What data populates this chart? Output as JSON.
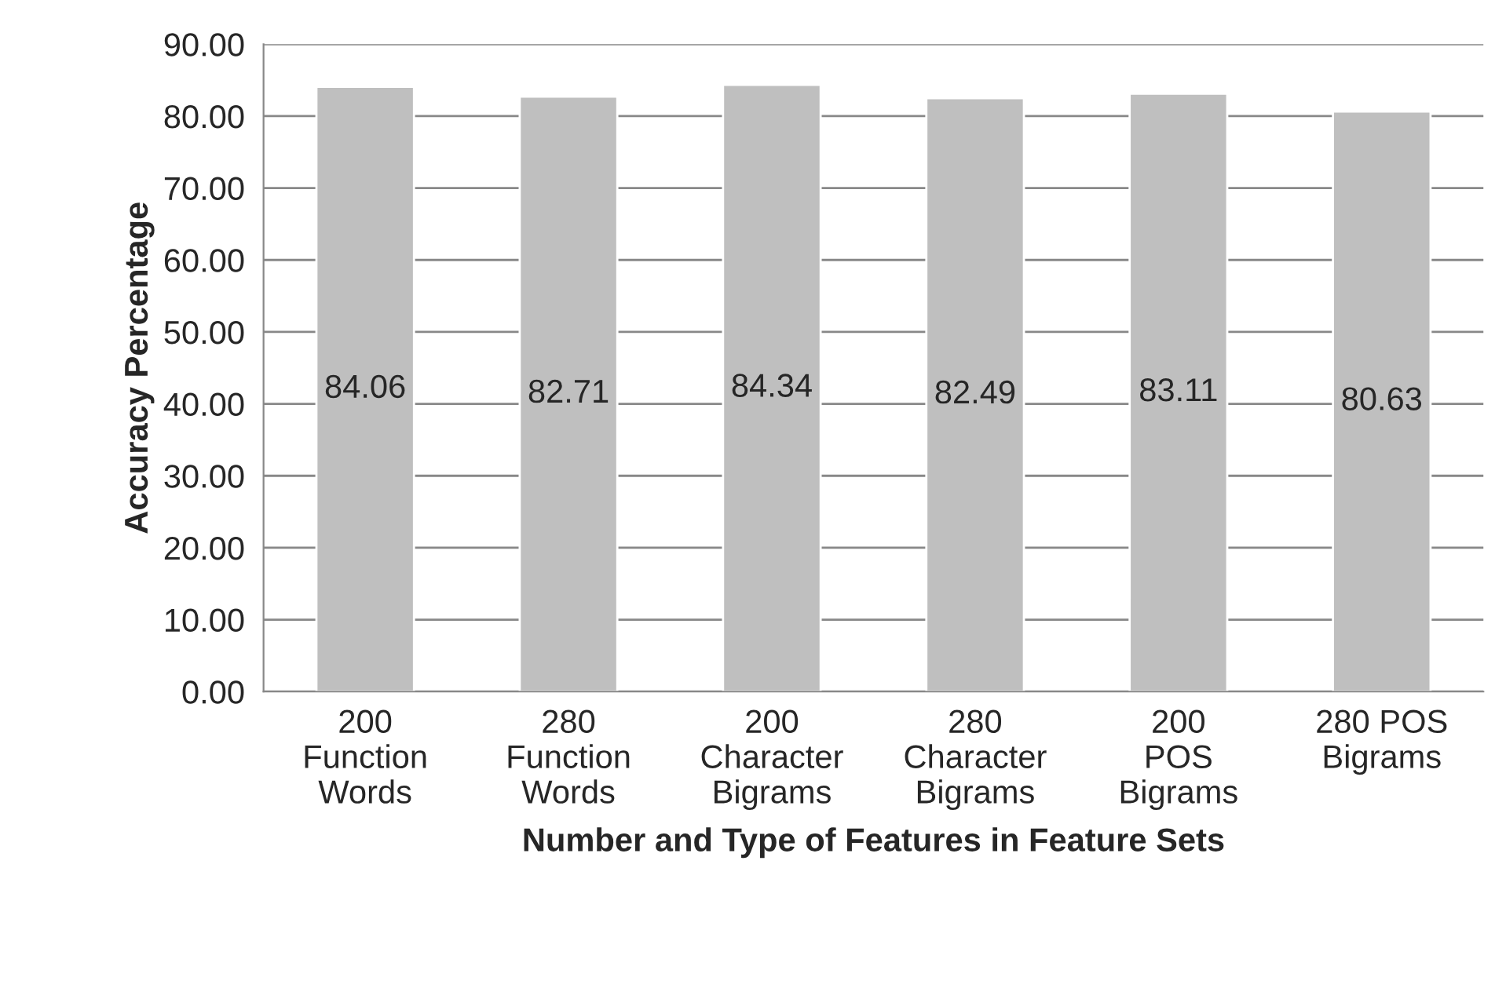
{
  "chart_data": {
    "type": "bar",
    "categories": [
      "200\nFunction\nWords",
      "280\nFunction\nWords",
      "200\nCharacter\nBigrams",
      "280\nCharacter\nBigrams",
      "200\nPOS\nBigrams",
      "280 POS\nBigrams"
    ],
    "values": [
      84.06,
      82.71,
      84.34,
      82.49,
      83.11,
      80.63
    ],
    "color": "#bfbfbf",
    "xlabel": "Number and Type of Features in Feature Sets",
    "ylabel": "Accuracy Percentage",
    "ylim": [
      0,
      90
    ],
    "yticks": [
      {
        "value": 0,
        "label": "0.00"
      },
      {
        "value": 10,
        "label": "10.00"
      },
      {
        "value": 20,
        "label": "20.00"
      },
      {
        "value": 30,
        "label": "30.00"
      },
      {
        "value": 40,
        "label": "40.00"
      },
      {
        "value": 50,
        "label": "50.00"
      },
      {
        "value": 60,
        "label": "60.00"
      },
      {
        "value": 70,
        "label": "70.00"
      },
      {
        "value": 80,
        "label": "80.00"
      },
      {
        "value": 90,
        "label": "90.00"
      }
    ],
    "grid": "y",
    "data_labels": true
  }
}
